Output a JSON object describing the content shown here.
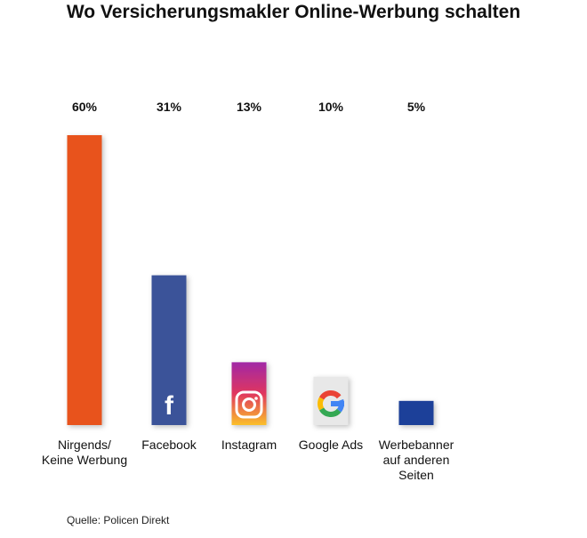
{
  "chart_data": {
    "type": "bar",
    "title": "Wo Versicherungsmakler Online-Werbung schalten",
    "categories": [
      [
        "Nirgends/",
        "Keine Werbung"
      ],
      [
        "Facebook"
      ],
      [
        "Instagram"
      ],
      [
        "Google Ads"
      ],
      [
        "Werbebanner",
        "auf anderen",
        "Seiten"
      ]
    ],
    "values": [
      60,
      31,
      13,
      10,
      5
    ],
    "value_labels": [
      "60%",
      "31%",
      "13%",
      "10%",
      "5%"
    ],
    "icons": [
      "",
      "facebook-icon",
      "instagram-icon",
      "google-icon",
      ""
    ],
    "colors": [
      "#e8531d",
      "#3b5299",
      "gradient-instagram",
      "#e8e8e8",
      "#1a3f99"
    ],
    "ylim": [
      0,
      60
    ],
    "grid": false,
    "xlabel": "",
    "ylabel": ""
  },
  "source": "Quelle: Policen Direkt"
}
